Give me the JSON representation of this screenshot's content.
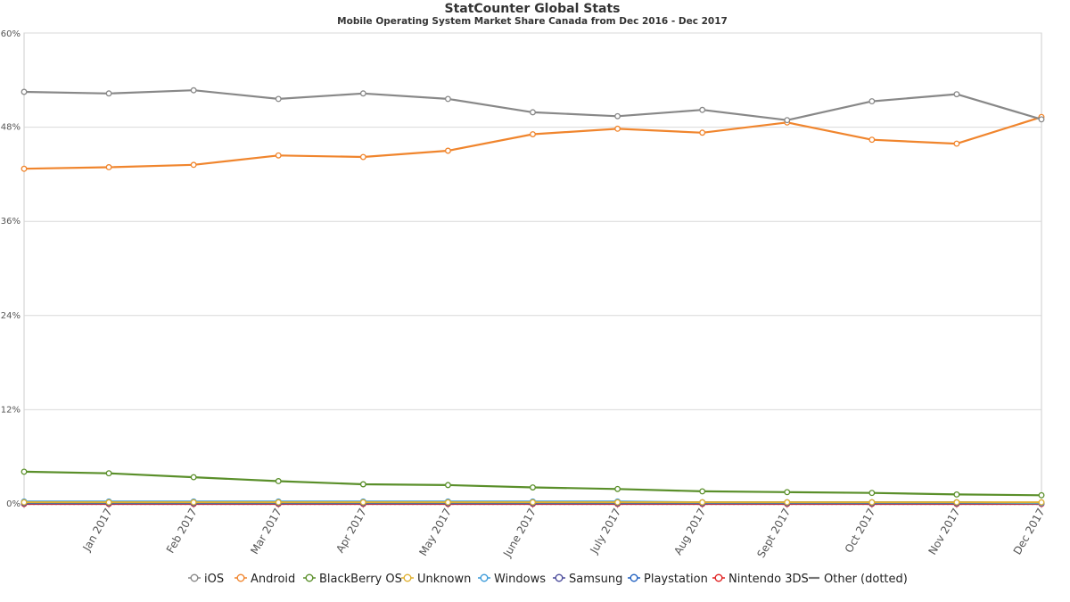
{
  "chart_data": {
    "type": "line",
    "title": "StatCounter Global Stats",
    "subtitle": "Mobile Operating System Market Share Canada from Dec 2016 - Dec 2017",
    "categories": [
      "Dec 2016",
      "Jan 2017",
      "Feb 2017",
      "Mar 2017",
      "Apr 2017",
      "May 2017",
      "June 2017",
      "July 2017",
      "Aug 2017",
      "Sept 2017",
      "Oct 2017",
      "Nov 2017",
      "Dec 2017"
    ],
    "x_tick_labels": [
      "",
      "Jan 2017",
      "Feb 2017",
      "Mar 2017",
      "Apr 2017",
      "May 2017",
      "June 2017",
      "July 2017",
      "Aug 2017",
      "Sept 2017",
      "Oct 2017",
      "Nov 2017",
      "Dec 2017"
    ],
    "y_ticks": [
      "0%",
      "12%",
      "24%",
      "36%",
      "48%",
      "60%"
    ],
    "ylim": [
      0,
      60
    ],
    "y_unit": "%",
    "grid": true,
    "legend_position": "bottom",
    "series": [
      {
        "name": "iOS",
        "color": "#888888",
        "values": [
          52.5,
          52.3,
          52.7,
          51.6,
          52.3,
          51.6,
          49.9,
          49.4,
          50.2,
          48.9,
          51.3,
          52.2,
          49.0
        ]
      },
      {
        "name": "Android",
        "color": "#f0852d",
        "values": [
          42.7,
          42.9,
          43.2,
          44.4,
          44.2,
          45.0,
          47.1,
          47.8,
          47.3,
          48.6,
          46.4,
          45.9,
          49.3
        ]
      },
      {
        "name": "BlackBerry OS",
        "color": "#5a8f2a",
        "values": [
          4.1,
          3.9,
          3.4,
          2.9,
          2.5,
          2.4,
          2.1,
          1.9,
          1.6,
          1.5,
          1.4,
          1.2,
          1.1
        ]
      },
      {
        "name": "Unknown",
        "color": "#e0b030",
        "values": [
          0.2,
          0.2,
          0.2,
          0.2,
          0.2,
          0.2,
          0.2,
          0.2,
          0.2,
          0.2,
          0.2,
          0.2,
          0.2
        ]
      },
      {
        "name": "Windows",
        "color": "#3a9ad9",
        "values": [
          0.3,
          0.3,
          0.3,
          0.3,
          0.3,
          0.3,
          0.3,
          0.3,
          0.2,
          0.2,
          0.2,
          0.2,
          0.1
        ]
      },
      {
        "name": "Samsung",
        "color": "#4a4a9a",
        "values": [
          0.2,
          0.2,
          0.2,
          0.2,
          0.2,
          0.2,
          0.2,
          0.2,
          0.2,
          0.2,
          0.2,
          0.2,
          0.1
        ]
      },
      {
        "name": "Playstation",
        "color": "#2060c0",
        "values": [
          0.1,
          0.1,
          0.1,
          0.1,
          0.1,
          0.1,
          0.1,
          0.1,
          0.1,
          0.1,
          0.1,
          0.1,
          0.1
        ]
      },
      {
        "name": "Nintendo 3DS",
        "color": "#e02020",
        "values": [
          0.0,
          0.0,
          0.0,
          0.0,
          0.0,
          0.0,
          0.0,
          0.0,
          0.0,
          0.0,
          0.0,
          0.0,
          0.0
        ]
      },
      {
        "name": "Other (dotted)",
        "color": "#777777",
        "values": [
          0.0,
          0.0,
          0.0,
          0.0,
          0.0,
          0.0,
          0.0,
          0.0,
          0.0,
          0.0,
          0.0,
          0.0,
          0.0
        ],
        "legend_style": "line"
      }
    ]
  }
}
